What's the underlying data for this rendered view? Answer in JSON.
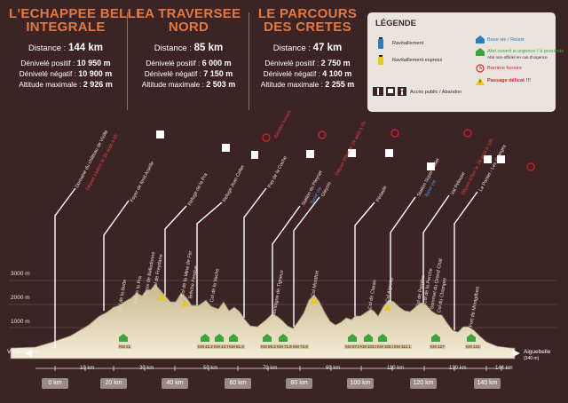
{
  "routes": [
    {
      "title_line1": "L'ECHAPPEE BELLE",
      "title_line2": "INTEGRALE",
      "distance_label": "Distance : ",
      "distance": "144 km",
      "pos_label": "Dénivelé positif : ",
      "pos": "10 950 m",
      "neg_label": "Dénivelé négatif : ",
      "neg": "10 900 m",
      "alt_label": "Altitude maximale : ",
      "alt": "2 926 m"
    },
    {
      "title_line1": "LA TRAVERSEE",
      "title_line2": "NORD",
      "distance_label": "Distance : ",
      "distance": "85 km",
      "pos_label": "Dénivelé positif : ",
      "pos": "6 000 m",
      "neg_label": "Dénivelé négatif : ",
      "neg": "7 150 m",
      "alt_label": "Altitude maximale : ",
      "alt": "2 503 m"
    },
    {
      "title_line1": "LE PARCOURS",
      "title_line2": "DES CRETES",
      "distance_label": "Distance : ",
      "distance": "47 km",
      "pos_label": "Dénivelé positif : ",
      "pos": "2 750 m",
      "neg_label": "Dénivelé négatif : ",
      "neg": "4 100 m",
      "alt_label": "Altitude maximale : ",
      "alt": "2 255 m"
    }
  ],
  "legend": {
    "title": "LÉGENDE",
    "ravitaillement": "Ravitaillement",
    "ravitaillement_express": "Ravitaillement express",
    "acces_public": "Accès public / Abandon",
    "base_vie": "Base vie / Relais",
    "abri": "Abri ouvert si urgence / à proximité",
    "abri_note": "Abri non-officiel en cas d'urgence",
    "barriere": "Barrière horaire",
    "passage": "Passage délicat !!!",
    "colors": {
      "base_vie": "#2f7fbf",
      "abri": "#3da33d",
      "barriere": "#d8232a",
      "passage": "#e8c81a"
    }
  },
  "altitude_axis": [
    "3000 m",
    "2000 m",
    "1000 m"
  ],
  "start_label": "Vizille",
  "start_alt": "(390 m)",
  "end_label": "Aiguebelle",
  "end_alt": "(340 m)",
  "km_labels": [
    "10 km",
    "30 km",
    "50 km",
    "70 km",
    "90 km",
    "110 km",
    "130 km",
    "144 km"
  ],
  "km_boxes": [
    "0 km",
    "20 km",
    "40 km",
    "60 km",
    "80 km",
    "100 km",
    "120 km",
    "140 km"
  ],
  "places": [
    "Domaine du château de Vizille",
    "Départ 144km le 28 août à 6h",
    "Foyer de fond Arselle",
    "Refuge de la Pra",
    "Refuge Jean Collet",
    "Pas de la Coche",
    "Station du Pleynet",
    "Base vie",
    "Gleyzin",
    "Pédaole",
    "Départ 85km le 29 août à 6h",
    "Station Super Collet",
    "Base vie",
    "Val Pelouse",
    "Départ 47km le 29 août à 10h",
    "Le Pontet - Les Granges",
    "Barrière horaire"
  ],
  "cols": [
    "Col de la Botte",
    "Col de la Pra",
    "Croix de Belledonne",
    "Col de Freydane",
    "Col de la Mine de Fer",
    "Brèche Fendue",
    "Col de la Vache",
    "Montagne de Tigneux",
    "Col Montfort",
    "Col de Claran",
    "Col Aigrette",
    "Col de Perrière",
    "Col de la Perche",
    "Sommet du Grand Chat",
    "Col du Champet",
    "Fort de Montgilbert"
  ],
  "stops": [
    "KM 21",
    "KM 42.3",
    "KM 43.7",
    "KM 51.4",
    "KM 69.2",
    "KM 71.6",
    "KM 73.8",
    "KM 87.6",
    "KM 103.0",
    "KM 108.3",
    "KM 112.1",
    "KM 127",
    "KM 131"
  ]
}
